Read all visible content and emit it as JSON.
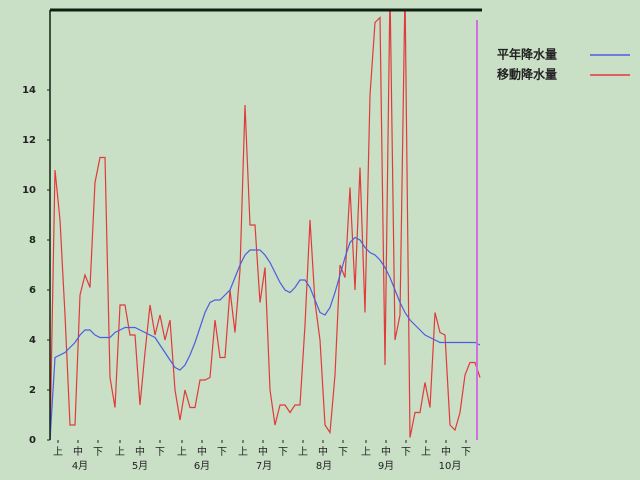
{
  "chart_data": {
    "type": "line",
    "x": [
      0,
      2.5,
      5,
      7.5,
      10,
      12.5,
      15,
      17.5,
      20,
      22.5,
      25,
      27.5,
      30,
      32.5,
      35,
      37.5,
      40,
      42.5,
      45,
      47.5,
      50,
      52.5,
      55,
      57.5,
      60,
      62.5,
      65,
      67.5,
      70,
      72.5,
      75,
      77.5,
      80,
      82.5,
      85,
      87.5,
      90,
      92.5,
      95,
      97.5,
      100,
      102.5,
      105,
      107.5,
      110,
      112.5,
      115,
      117.5,
      120,
      122.5,
      125,
      127.5,
      130,
      132.5,
      135,
      137.5,
      140,
      142.5,
      145,
      147.5,
      150,
      152.5,
      155,
      157.5,
      160,
      162.5,
      165,
      167.5,
      170,
      172.5,
      175,
      177.5,
      180,
      182.5,
      185,
      187.5,
      190,
      192.5,
      195,
      197.5,
      200,
      202.5,
      205,
      207.5,
      210,
      212.5,
      215
    ],
    "series": [
      {
        "name": "平年降水量",
        "color": "#4a5ee0",
        "values": [
          0,
          3.3,
          3.4,
          3.5,
          3.7,
          3.9,
          4.2,
          4.4,
          4.4,
          4.2,
          4.1,
          4.1,
          4.1,
          4.3,
          4.4,
          4.5,
          4.5,
          4.5,
          4.4,
          4.3,
          4.2,
          4.1,
          3.8,
          3.5,
          3.2,
          2.9,
          2.8,
          3.0,
          3.4,
          3.9,
          4.5,
          5.1,
          5.5,
          5.6,
          5.6,
          5.8,
          6.0,
          6.5,
          7.0,
          7.4,
          7.6,
          7.6,
          7.6,
          7.4,
          7.1,
          6.7,
          6.3,
          6.0,
          5.9,
          6.1,
          6.4,
          6.4,
          6.1,
          5.6,
          5.1,
          5.0,
          5.3,
          5.9,
          6.6,
          7.3,
          7.9,
          8.1,
          8.0,
          7.7,
          7.5,
          7.4,
          7.2,
          6.9,
          6.5,
          6.0,
          5.5,
          5.1,
          4.8,
          4.6,
          4.4,
          4.2,
          4.1,
          4.0,
          3.9,
          3.9,
          3.9,
          3.9,
          3.9,
          3.9,
          3.9,
          3.9,
          3.8
        ]
      },
      {
        "name": "移動降水量",
        "color": "#e03a3a",
        "values": [
          0,
          10.8,
          8.8,
          5,
          0.6,
          0.6,
          5.8,
          6.6,
          6.1,
          10.3,
          11.3,
          11.3,
          2.5,
          1.3,
          5.4,
          5.4,
          4.2,
          4.2,
          1.4,
          3.5,
          5.4,
          4.2,
          5,
          4,
          4.8,
          2,
          0.8,
          2,
          1.3,
          1.3,
          2.4,
          2.4,
          2.5,
          4.8,
          3.3,
          3.3,
          6,
          4.3,
          6.8,
          13.4,
          8.6,
          8.6,
          5.5,
          6.9,
          2,
          0.6,
          1.4,
          1.4,
          1.1,
          1.4,
          1.4,
          4.6,
          8.8,
          5.5,
          4,
          0.6,
          0.3,
          2.6,
          7,
          6.5,
          10.1,
          6,
          10.9,
          5.1,
          13.8,
          16.7,
          16.9,
          3,
          18,
          4,
          5,
          18,
          0.1,
          1.1,
          1.1,
          2.3,
          1.3,
          5.1,
          4.3,
          4.2,
          0.6,
          0.4,
          1.1,
          2.6,
          3.1,
          3.1,
          2.5
        ]
      }
    ],
    "xlim": [
      0,
      216
    ],
    "ylim": [
      0,
      17.2
    ],
    "yticks": [
      0,
      2,
      4,
      6,
      8,
      10,
      12,
      14
    ],
    "xticks": [
      {
        "value": 4,
        "label": "上"
      },
      {
        "value": 14,
        "label": "中"
      },
      {
        "value": 24,
        "label": "下"
      },
      {
        "value": 35,
        "label": "上"
      },
      {
        "value": 45,
        "label": "中"
      },
      {
        "value": 55,
        "label": "下"
      },
      {
        "value": 66,
        "label": "上"
      },
      {
        "value": 76,
        "label": "中"
      },
      {
        "value": 86,
        "label": "下"
      },
      {
        "value": 96.5,
        "label": "上"
      },
      {
        "value": 106.5,
        "label": "中"
      },
      {
        "value": 116.5,
        "label": "下"
      },
      {
        "value": 126.5,
        "label": "上"
      },
      {
        "value": 136.5,
        "label": "中"
      },
      {
        "value": 146.5,
        "label": "下"
      },
      {
        "value": 158,
        "label": "上"
      },
      {
        "value": 168,
        "label": "中"
      },
      {
        "value": 178,
        "label": "下"
      },
      {
        "value": 188,
        "label": "上"
      },
      {
        "value": 198,
        "label": "中"
      },
      {
        "value": 208,
        "label": "下"
      }
    ],
    "month_labels": [
      {
        "value": 15,
        "label": "4月"
      },
      {
        "value": 45,
        "label": "5月"
      },
      {
        "value": 76,
        "label": "6月"
      },
      {
        "value": 107,
        "label": "7月"
      },
      {
        "value": 137,
        "label": "8月"
      },
      {
        "value": 168,
        "label": "9月"
      },
      {
        "value": 200,
        "label": "10月"
      }
    ]
  }
}
